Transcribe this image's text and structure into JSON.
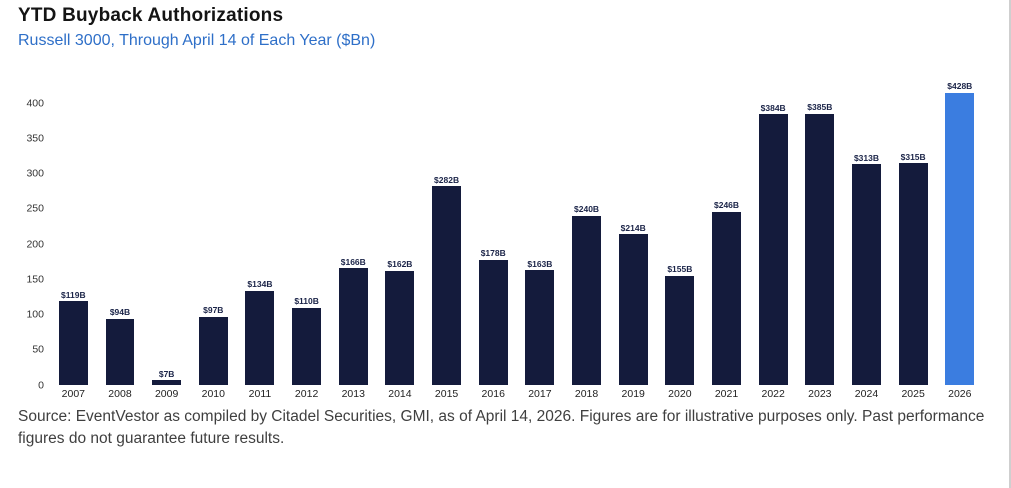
{
  "header": {
    "title": "YTD Buyback Authorizations",
    "subtitle": "Russell 3000, Through April 14 of Each Year ($Bn)"
  },
  "chart_data": {
    "type": "bar",
    "title": "YTD Buyback Authorizations",
    "subtitle": "Russell 3000, Through April 14 of Each Year ($Bn)",
    "categories": [
      "2007",
      "2008",
      "2009",
      "2010",
      "2011",
      "2012",
      "2013",
      "2014",
      "2015",
      "2016",
      "2017",
      "2018",
      "2019",
      "2020",
      "2021",
      "2022",
      "2023",
      "2024",
      "2025",
      "2026"
    ],
    "values": [
      119,
      94,
      7,
      97,
      134,
      110,
      166,
      162,
      282,
      178,
      163,
      240,
      214,
      155,
      246,
      384,
      385,
      313,
      315,
      428
    ],
    "value_labels": [
      "$119B",
      "$94B",
      "$7B",
      "$97B",
      "$134B",
      "$110B",
      "$166B",
      "$162B",
      "$282B",
      "$178B",
      "$163B",
      "$240B",
      "$214B",
      "$155B",
      "$246B",
      "$384B",
      "$385B",
      "$313B",
      "$315B",
      "$428B"
    ],
    "xlabel": "",
    "ylabel": "",
    "ylim": [
      0,
      430
    ],
    "yticks": [
      0,
      50,
      100,
      150,
      200,
      250,
      300,
      350,
      400
    ],
    "grid": false,
    "legend_position": "none",
    "bar_color": "#141b3c",
    "highlight_color": "#3b7de0",
    "highlight_index": 19
  },
  "footer": {
    "source": "Source: EventVestor as compiled by Citadel Securities, GMI, as of April 14, 2026. Figures are for illustrative purposes only. Past performance figures do not guarantee future results."
  }
}
